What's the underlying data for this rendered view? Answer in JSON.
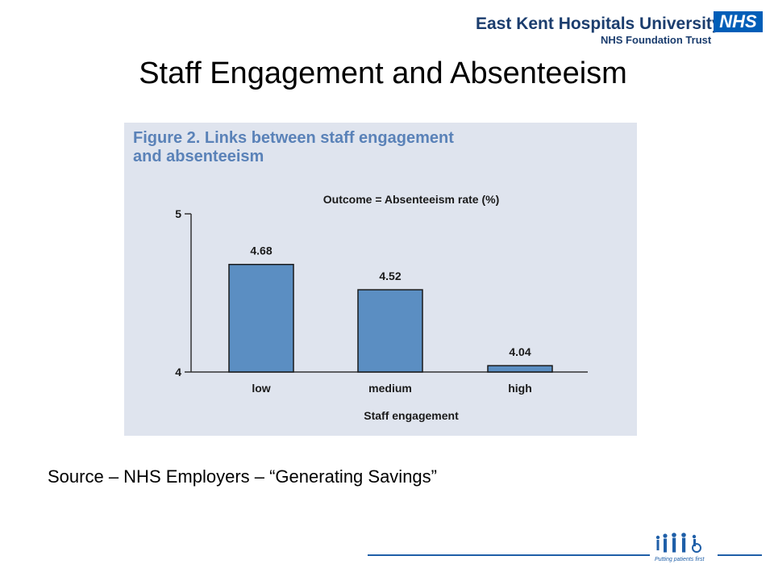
{
  "header": {
    "org_name": "East Kent Hospitals University",
    "org_sub": "NHS Foundation Trust",
    "nhs_logo_text": "NHS"
  },
  "slide": {
    "title": "Staff Engagement and Absenteeism"
  },
  "figure": {
    "title_line1": "Figure 2. Links between staff engagement",
    "title_line2": "and absenteeism"
  },
  "chart_data": {
    "type": "bar",
    "title": "Outcome = Absenteeism rate (%)",
    "xlabel": "Staff engagement",
    "ylabel": "",
    "categories": [
      "low",
      "medium",
      "high"
    ],
    "values": [
      4.68,
      4.52,
      4.04
    ],
    "data_labels": [
      "4.68",
      "4.52",
      "4.04"
    ],
    "ylim": [
      4,
      5
    ],
    "yticks": [
      "4",
      "5"
    ],
    "grid": false,
    "bar_color": "#5b8ec2",
    "bar_edge_color": "#1a1a1a"
  },
  "source": {
    "text": "Source – NHS Employers – “Generating Savings”"
  },
  "footer": {
    "tagline": "Putting patients first",
    "accent_color": "#1f5fa8",
    "logo_icon": "people-with-wheelchair-icon"
  }
}
